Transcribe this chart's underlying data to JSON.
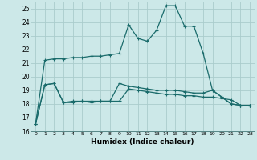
{
  "title": "",
  "xlabel": "Humidex (Indice chaleur)",
  "ylabel": "",
  "background_color": "#cce8e8",
  "grid_color": "#aacccc",
  "line_color": "#1a6b6b",
  "x_values": [
    0,
    1,
    2,
    3,
    4,
    5,
    6,
    7,
    8,
    9,
    10,
    11,
    12,
    13,
    14,
    15,
    16,
    17,
    18,
    19,
    20,
    21,
    22,
    23
  ],
  "line1": [
    16.5,
    21.2,
    21.3,
    21.3,
    21.4,
    21.4,
    21.5,
    21.5,
    21.6,
    21.7,
    23.8,
    22.8,
    22.6,
    23.4,
    25.2,
    25.2,
    23.7,
    23.7,
    21.7,
    19.0,
    18.5,
    18.0,
    17.9,
    17.9
  ],
  "line2": [
    16.5,
    19.4,
    19.5,
    18.1,
    18.2,
    18.2,
    18.2,
    18.2,
    18.2,
    18.2,
    19.1,
    19.0,
    18.9,
    18.8,
    18.7,
    18.7,
    18.6,
    18.6,
    18.5,
    18.5,
    18.4,
    18.3,
    17.9,
    17.9
  ],
  "line3": [
    16.5,
    19.4,
    19.5,
    18.1,
    18.1,
    18.2,
    18.1,
    18.2,
    18.2,
    19.5,
    19.3,
    19.2,
    19.1,
    19.0,
    19.0,
    19.0,
    18.9,
    18.8,
    18.8,
    19.0,
    18.5,
    18.0,
    17.9,
    17.9
  ],
  "ylim": [
    16,
    25.5
  ],
  "yticks": [
    16,
    17,
    18,
    19,
    20,
    21,
    22,
    23,
    24,
    25
  ],
  "figsize": [
    3.2,
    2.0
  ],
  "dpi": 100
}
